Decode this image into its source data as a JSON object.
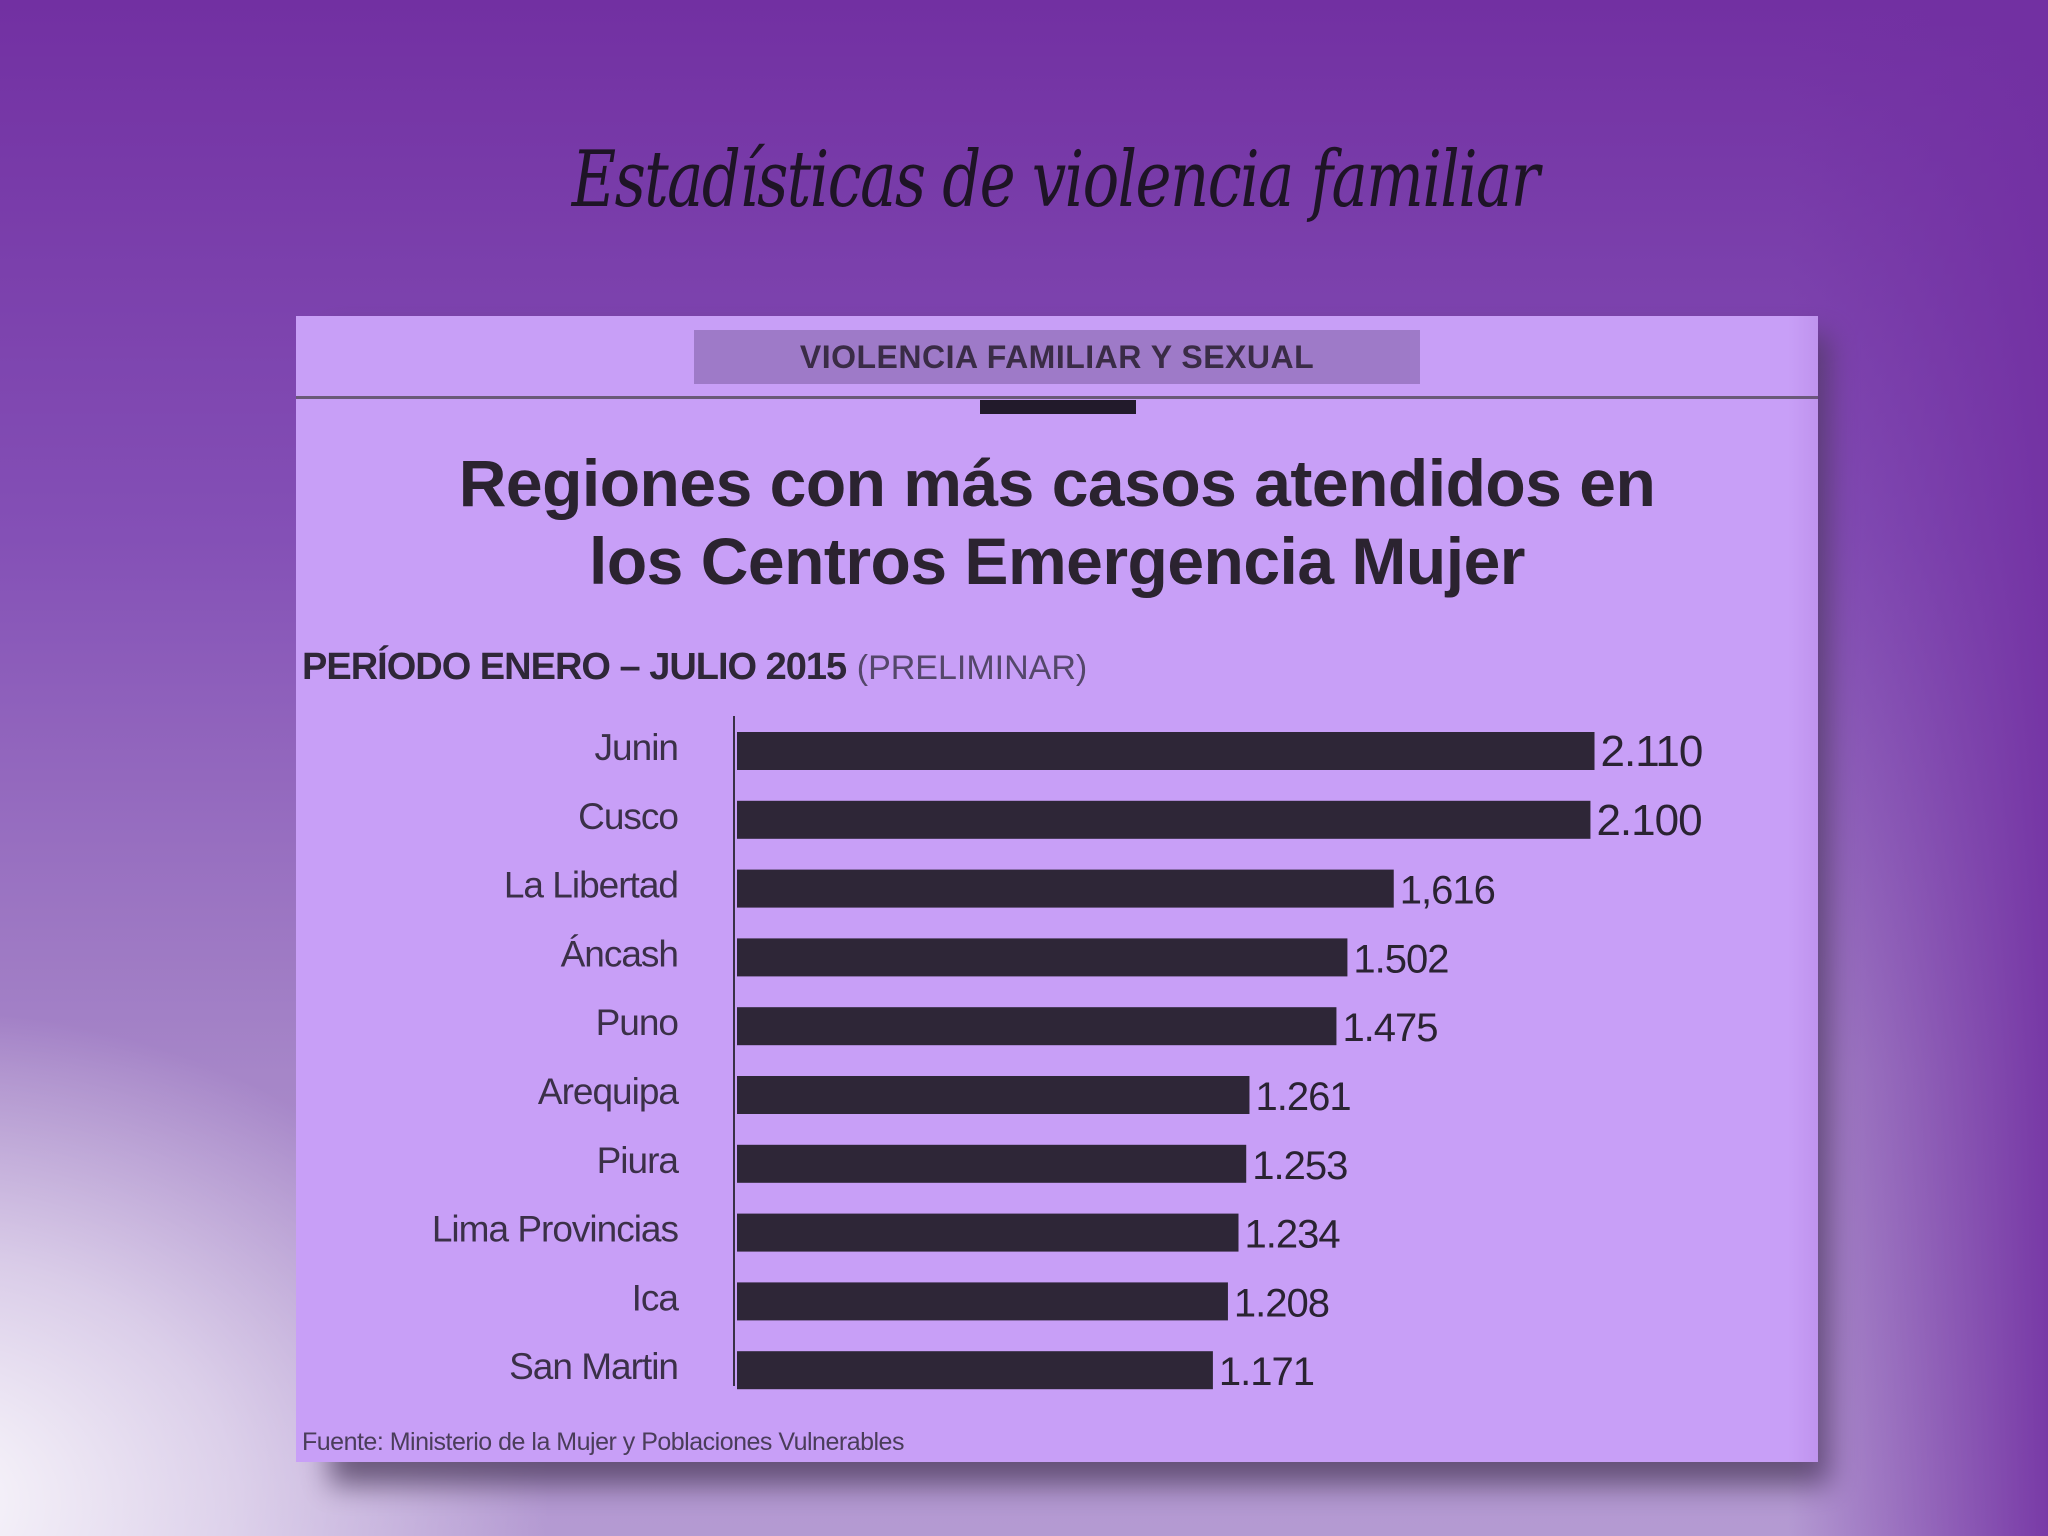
{
  "slide": {
    "title": "Estadísticas de violencia familiar"
  },
  "card": {
    "header": "VIOLENCIA FAMILIAR Y SEXUAL",
    "title_line1": "Regiones con más casos atendidos en",
    "title_line2": "los Centros Emergencia Mujer",
    "subtitle_strong": "PERÍODO ENERO – JULIO 2015",
    "subtitle_light": "(PRELIMINAR)",
    "source": "Fuente: Ministerio de la Mujer y Poblaciones Vulnerables"
  },
  "colors": {
    "bar": "#2e2637",
    "card_background": "#c89ff7",
    "slide_background": "#7230a2"
  },
  "chart_data": {
    "type": "bar",
    "orientation": "horizontal",
    "categories": [
      "Junin",
      "Cusco",
      "La Libertad",
      "Áncash",
      "Puno",
      "Arequipa",
      "Piura",
      "Lima Provincias",
      "Ica",
      "San Martin"
    ],
    "values": [
      2110,
      2100,
      1616,
      1502,
      1475,
      1261,
      1253,
      1234,
      1208,
      1171
    ],
    "value_labels": [
      "2.110",
      "2.100",
      "1,616",
      "1.502",
      "1.475",
      "1.261",
      "1.253",
      "1.234",
      "1.208",
      "1.171"
    ],
    "title": "Regiones con más casos atendidos en los Centros Emergencia Mujer",
    "xlabel": "",
    "ylabel": "",
    "grid": false,
    "legend": "none"
  }
}
